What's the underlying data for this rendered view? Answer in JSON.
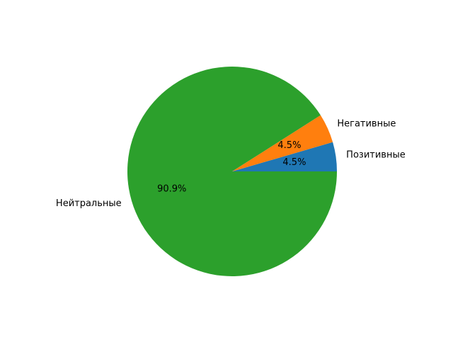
{
  "chart_data": {
    "type": "pie",
    "categories": [
      "Позитивные",
      "Негативные",
      "Нейтральные"
    ],
    "values": [
      4.5,
      4.5,
      90.9
    ],
    "percent_labels": [
      "4.5%",
      "4.5%",
      "90.9%"
    ],
    "colors": [
      "#1f77b4",
      "#ff7f0e",
      "#2ca02c"
    ],
    "start_angle_deg": 0,
    "direction": "counterclockwise",
    "legend": "none"
  }
}
